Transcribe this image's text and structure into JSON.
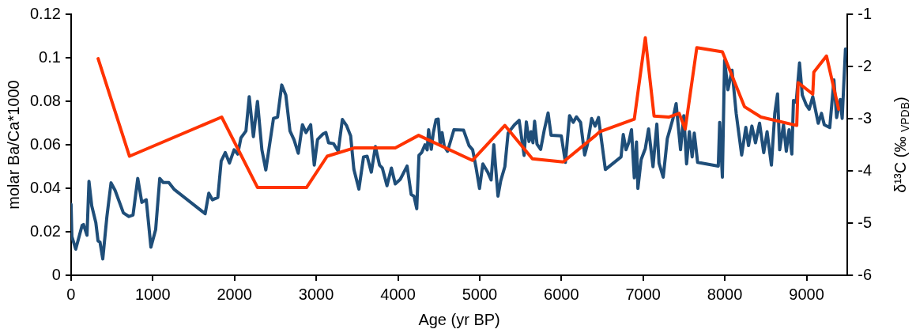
{
  "chart_data": {
    "type": "line",
    "xlabel": "Age (yr BP)",
    "ylabel": "molar Ba/Ca*1000",
    "y2label": "δ¹³C (‰ $_{VPDB}$)",
    "xlim": [
      0,
      9500
    ],
    "xticks": [
      0,
      1000,
      2000,
      3000,
      4000,
      5000,
      6000,
      7000,
      8000,
      9000
    ],
    "ylim": [
      0,
      0.12
    ],
    "yticks": [
      0,
      0.02,
      0.04,
      0.06,
      0.08,
      0.1,
      0.12
    ],
    "y2lim": [
      -6,
      -1
    ],
    "y2ticks": [
      -6,
      -5,
      -4,
      -3,
      -2,
      -1
    ],
    "marker": "none",
    "series": [
      {
        "color": "#1f4e79",
        "x": [
          0,
          10,
          57,
          135,
          152,
          195,
          219,
          253,
          303,
          330,
          354,
          388,
          438,
          489,
          539,
          640,
          708,
          758,
          816,
          866,
          920,
          977,
          1035,
          1085,
          1129,
          1196,
          1264,
          1641,
          1685,
          1729,
          1796,
          1837,
          1887,
          1938,
          1995,
          2039,
          2079,
          2140,
          2180,
          2231,
          2281,
          2335,
          2383,
          2477,
          2527,
          2578,
          2628,
          2679,
          2729,
          2780,
          2831,
          2875,
          2932,
          2976,
          3016,
          3084,
          3118,
          3151,
          3212,
          3269,
          3320,
          3370,
          3421,
          3461,
          3522,
          3579,
          3623,
          3674,
          3724,
          3775,
          3809,
          3866,
          3920,
          3967,
          4028,
          4112,
          4162,
          4196,
          4230,
          4257,
          4290,
          4331,
          4358,
          4375,
          4408,
          4432,
          4466,
          4493,
          4516,
          4540,
          4567,
          4607,
          4685,
          4803,
          4870,
          4914,
          4954,
          4998,
          5039,
          5099,
          5140,
          5173,
          5224,
          5258,
          5308,
          5348,
          5426,
          5483,
          5544,
          5571,
          5604,
          5628,
          5652,
          5672,
          5702,
          5746,
          5790,
          5837,
          5874,
          5999,
          6049,
          6100,
          6144,
          6184,
          6235,
          6285,
          6319,
          6370,
          6413,
          6454,
          6538,
          6730,
          6757,
          6791,
          6825,
          6858,
          6892,
          6919,
          6936,
          6976,
          7027,
          7067,
          7121,
          7168,
          7195,
          7246,
          7296,
          7364,
          7404,
          7458,
          7498,
          7532,
          7566,
          7600,
          7626,
          7667,
          7920,
          7937,
          7970,
          7997,
          8038,
          8088,
          8139,
          8206,
          8257,
          8290,
          8331,
          8375,
          8425,
          8476,
          8517,
          8570,
          8611,
          8645,
          8671,
          8718,
          8752,
          8786,
          8820,
          8840,
          8873,
          8914,
          8948,
          8998,
          9032,
          9076,
          9143,
          9183,
          9217,
          9284,
          9335,
          9368,
          9412,
          9436,
          9476
        ],
        "values": [
          0.0326,
          0.0178,
          0.012,
          0.0229,
          0.0233,
          0.0184,
          0.0432,
          0.0319,
          0.0242,
          0.0158,
          0.0152,
          0.0075,
          0.0268,
          0.0425,
          0.039,
          0.0287,
          0.027,
          0.0277,
          0.0445,
          0.0335,
          0.0347,
          0.0129,
          0.021,
          0.0445,
          0.0426,
          0.0426,
          0.0394,
          0.0283,
          0.0377,
          0.0347,
          0.0358,
          0.0525,
          0.0564,
          0.0516,
          0.0577,
          0.0557,
          0.0632,
          0.0663,
          0.0821,
          0.0637,
          0.0799,
          0.0577,
          0.0484,
          0.0721,
          0.0727,
          0.0875,
          0.0828,
          0.0663,
          0.0622,
          0.0561,
          0.0692,
          0.0656,
          0.0692,
          0.0506,
          0.0624,
          0.065,
          0.0656,
          0.0609,
          0.0605,
          0.057,
          0.0716,
          0.0689,
          0.0641,
          0.0486,
          0.0396,
          0.0544,
          0.0547,
          0.0474,
          0.0592,
          0.0506,
          0.0493,
          0.0412,
          0.0493,
          0.042,
          0.0441,
          0.0502,
          0.0371,
          0.0364,
          0.0306,
          0.0551,
          0.0564,
          0.06,
          0.0577,
          0.0669,
          0.0579,
          0.0654,
          0.0716,
          0.0718,
          0.0602,
          0.0656,
          0.0592,
          0.057,
          0.0669,
          0.0667,
          0.0596,
          0.0577,
          0.0499,
          0.0399,
          0.0512,
          0.0474,
          0.0438,
          0.06,
          0.0364,
          0.0435,
          0.0499,
          0.0654,
          0.0692,
          0.0712,
          0.0551,
          0.0705,
          0.0615,
          0.066,
          0.0609,
          0.0708,
          0.0602,
          0.0579,
          0.0667,
          0.0746,
          0.0644,
          0.0641,
          0.0519,
          0.0734,
          0.0703,
          0.0728,
          0.0703,
          0.0553,
          0.0602,
          0.0721,
          0.0686,
          0.0725,
          0.0486,
          0.0544,
          0.0647,
          0.0577,
          0.0611,
          0.0669,
          0.0448,
          0.0613,
          0.0399,
          0.0532,
          0.0583,
          0.0673,
          0.0499,
          0.0695,
          0.0515,
          0.0451,
          0.0628,
          0.0718,
          0.0789,
          0.0577,
          0.0734,
          0.0512,
          0.066,
          0.0544,
          0.0654,
          0.0519,
          0.0502,
          0.0703,
          0.0451,
          0.0988,
          0.0853,
          0.0943,
          0.0744,
          0.0553,
          0.068,
          0.0596,
          0.0686,
          0.0609,
          0.0699,
          0.0564,
          0.066,
          0.0506,
          0.0744,
          0.0834,
          0.0577,
          0.0692,
          0.057,
          0.0669,
          0.0557,
          0.0804,
          0.0795,
          0.0976,
          0.0828,
          0.0782,
          0.0763,
          0.0821,
          0.0699,
          0.0744,
          0.0692,
          0.0679,
          0.0898,
          0.0725,
          0.0808,
          0.0721,
          0.104
        ]
      },
      {
        "color": "#ff3300",
        "axis": "y2",
        "x": [
          331,
          715,
          1843,
          2282,
          2881,
          3134,
          3471,
          3967,
          4253,
          4910,
          5308,
          5645,
          6022,
          6420,
          6471,
          6892,
          7027,
          7134,
          7313,
          7441,
          7515,
          7657,
          7970,
          8240,
          8442,
          8880,
          8897,
          9076,
          9089,
          9244,
          9393
        ],
        "values": [
          -1.85,
          -3.72,
          -2.97,
          -4.32,
          -4.32,
          -3.72,
          -3.56,
          -3.56,
          -3.32,
          -3.8,
          -3.13,
          -3.77,
          -3.83,
          -3.32,
          -3.25,
          -3.01,
          -1.45,
          -2.95,
          -2.97,
          -2.9,
          -3.2,
          -1.64,
          -1.72,
          -2.77,
          -2.97,
          -3.13,
          -2.31,
          -2.53,
          -2.11,
          -1.8,
          -2.82
        ]
      }
    ]
  }
}
